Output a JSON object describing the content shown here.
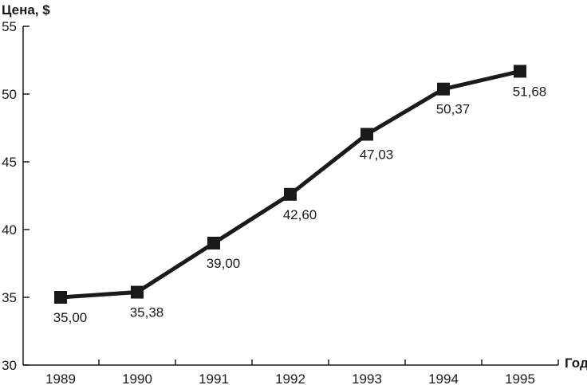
{
  "chart_data": {
    "type": "line",
    "ylabel": "Цена, $",
    "xlabel": "Год",
    "categories": [
      "1989",
      "1990",
      "1991",
      "1992",
      "1993",
      "1994",
      "1995"
    ],
    "values": [
      35.0,
      35.38,
      39.0,
      42.6,
      47.03,
      50.37,
      51.68
    ],
    "value_labels": [
      "35,00",
      "35,38",
      "39,00",
      "42,60",
      "47,03",
      "50,37",
      "51,68"
    ],
    "ylim": [
      30,
      55
    ],
    "yticks": [
      "30",
      "35",
      "40",
      "45",
      "50",
      "55"
    ],
    "grid": false,
    "line_color": "#1a1a1a",
    "marker": "square"
  }
}
